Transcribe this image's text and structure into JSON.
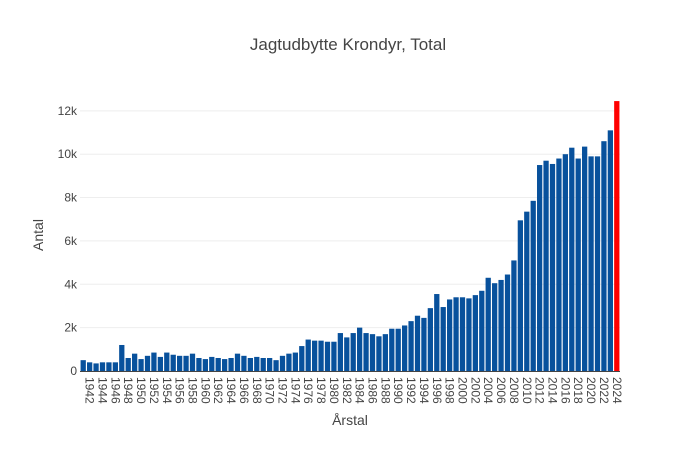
{
  "chart_data": {
    "type": "bar",
    "title": "Jagtudbytte Krondyr, Total",
    "xlabel": "Årstal",
    "ylabel": "Antal",
    "ylim": [
      0,
      12500
    ],
    "yticks": [
      0,
      2000,
      4000,
      6000,
      8000,
      10000,
      12000
    ],
    "ytick_labels": [
      "0",
      "2k",
      "4k",
      "6k",
      "8k",
      "10k",
      "12k"
    ],
    "xtick_labels": [
      "1942",
      "1944",
      "1946",
      "1948",
      "1950",
      "1952",
      "1954",
      "1956",
      "1958",
      "1960",
      "1962",
      "1964",
      "1966",
      "1968",
      "1970",
      "1972",
      "1974",
      "1976",
      "1978",
      "1980",
      "1982",
      "1984",
      "1986",
      "1988",
      "1990",
      "1992",
      "1994",
      "1996",
      "1998",
      "2000",
      "2002",
      "2004",
      "2006",
      "2008",
      "2010",
      "2012",
      "2014",
      "2016",
      "2018",
      "2020",
      "2022",
      "2024"
    ],
    "grid": true,
    "bar_color": "#08519c",
    "highlight_color": "#ff0000",
    "highlight_year": 2024,
    "categories": [
      1941,
      1942,
      1943,
      1944,
      1945,
      1946,
      1947,
      1948,
      1949,
      1950,
      1951,
      1952,
      1953,
      1954,
      1955,
      1956,
      1957,
      1958,
      1959,
      1960,
      1961,
      1962,
      1963,
      1964,
      1965,
      1966,
      1967,
      1968,
      1969,
      1970,
      1971,
      1972,
      1973,
      1974,
      1975,
      1976,
      1977,
      1978,
      1979,
      1980,
      1981,
      1982,
      1983,
      1984,
      1985,
      1986,
      1987,
      1988,
      1989,
      1990,
      1991,
      1992,
      1993,
      1994,
      1995,
      1996,
      1997,
      1998,
      1999,
      2000,
      2001,
      2002,
      2003,
      2004,
      2005,
      2006,
      2007,
      2008,
      2009,
      2010,
      2011,
      2012,
      2013,
      2014,
      2015,
      2016,
      2017,
      2018,
      2019,
      2020,
      2021,
      2022,
      2023,
      2024
    ],
    "values": [
      500,
      400,
      350,
      400,
      400,
      400,
      1200,
      600,
      800,
      550,
      700,
      850,
      650,
      850,
      750,
      700,
      700,
      800,
      600,
      550,
      650,
      600,
      550,
      600,
      800,
      700,
      600,
      650,
      600,
      600,
      500,
      700,
      800,
      850,
      1150,
      1450,
      1400,
      1400,
      1350,
      1350,
      1750,
      1550,
      1750,
      2000,
      1750,
      1700,
      1600,
      1700,
      1950,
      1950,
      2100,
      2300,
      2550,
      2450,
      2900,
      3550,
      2950,
      3300,
      3400,
      3400,
      3350,
      3500,
      3700,
      4300,
      4050,
      4200,
      4450,
      5100,
      6950,
      7350,
      7850,
      9500,
      9700,
      9550,
      9800,
      10000,
      10300,
      9800,
      10350,
      9900,
      9900,
      10600,
      11100,
      12450
    ]
  }
}
